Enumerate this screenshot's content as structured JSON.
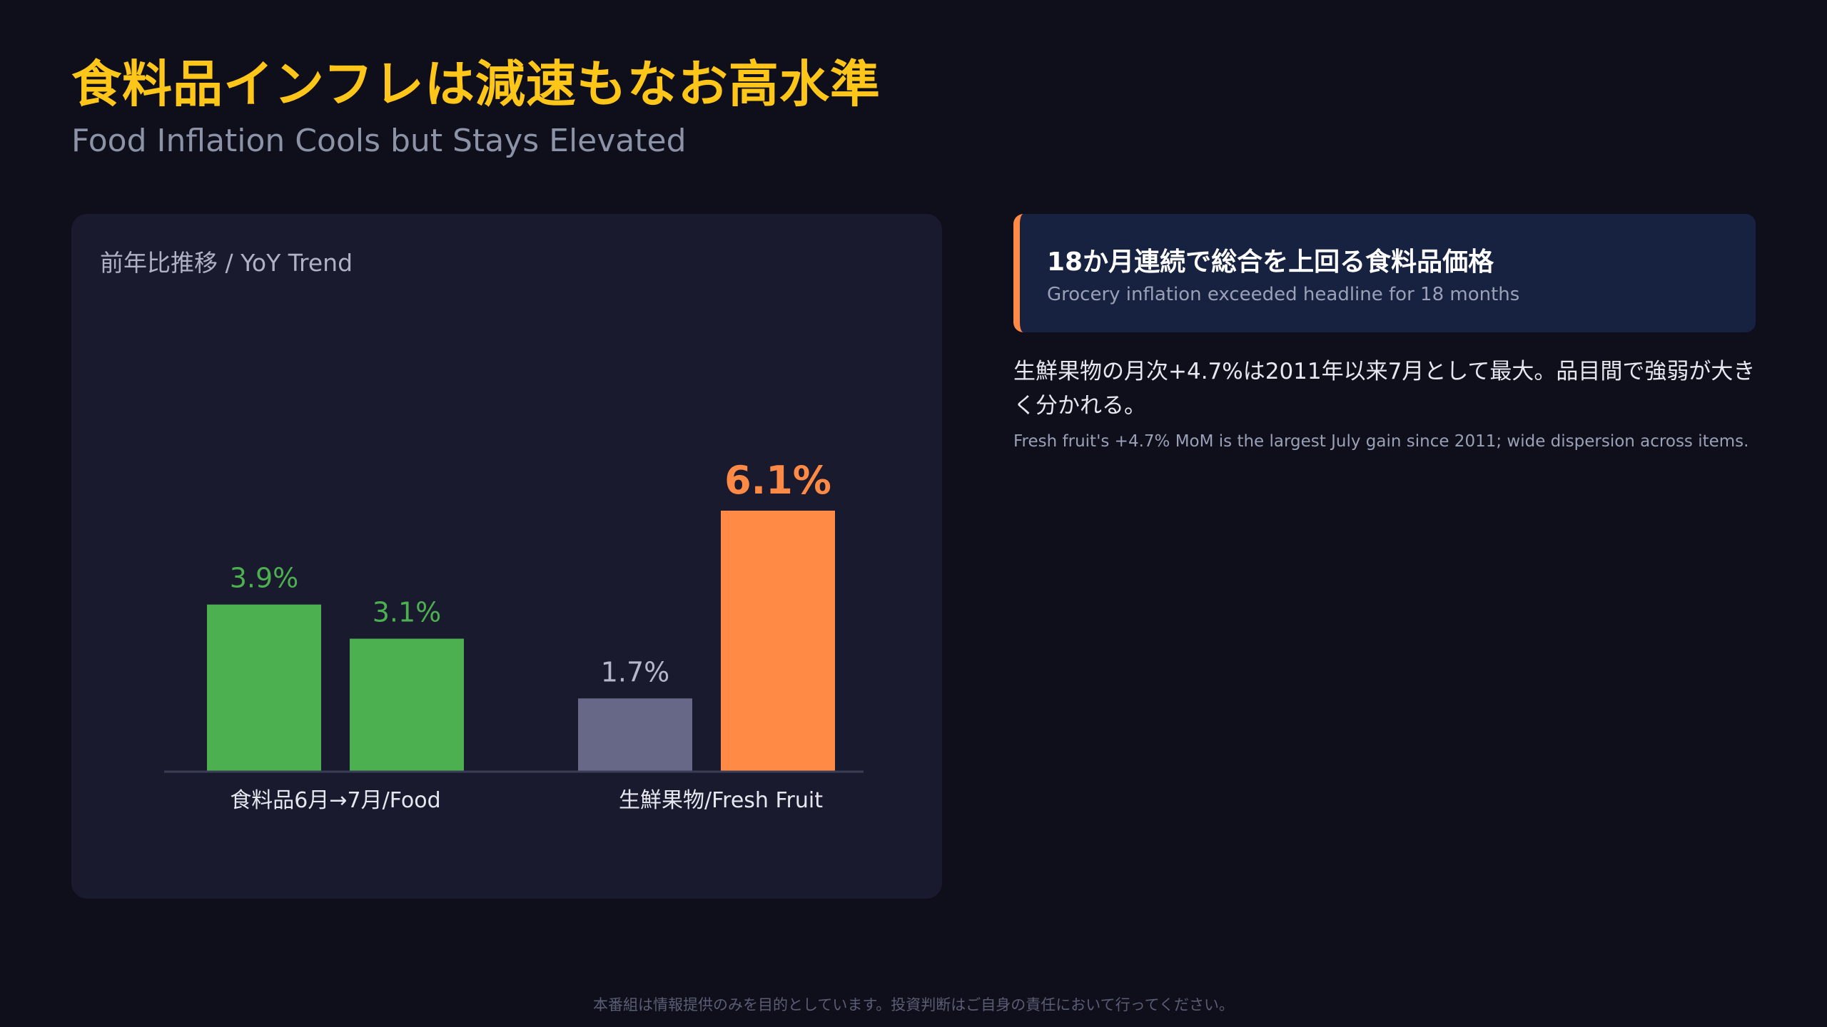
{
  "header": {
    "title": "食料品インフレは減速もなお高水準",
    "subtitle": "Food Inflation Cools but Stays Elevated"
  },
  "chart_panel": {
    "label": "前年比推移 / YoY Trend"
  },
  "chart_data": {
    "type": "bar",
    "title": "前年比推移 / YoY Trend",
    "categories": [
      "食料品6月→7月/Food",
      "生鮮果物/Fresh Fruit"
    ],
    "bars": [
      {
        "category": "食料品6月→7月/Food",
        "value": 3.9,
        "label": "3.9%",
        "color": "#4caf50",
        "label_color": "#4caf50",
        "emphasis": false
      },
      {
        "category": "食料品6月→7月/Food",
        "value": 3.1,
        "label": "3.1%",
        "color": "#4caf50",
        "label_color": "#4caf50",
        "emphasis": false
      },
      {
        "category": "生鮮果物/Fresh Fruit",
        "value": 1.7,
        "label": "1.7%",
        "color": "#676788",
        "label_color": "#b4b8c8",
        "emphasis": false
      },
      {
        "category": "生鮮果物/Fresh Fruit",
        "value": 6.1,
        "label": "6.1%",
        "color": "#ff8a45",
        "label_color": "#ff8a45",
        "emphasis": true
      }
    ],
    "ylim": [
      0,
      6.1
    ],
    "grid": false,
    "legend": "none",
    "xlabel": "",
    "ylabel": ""
  },
  "callout": {
    "title": "18か月連続で総合を上回る食料品価格",
    "subtitle": "Grocery inflation exceeded headline for 18 months",
    "accent_color": "#ff8a45"
  },
  "note": {
    "ja": "生鮮果物の月次+4.7%は2011年以来7月として最大。品目間で強弱が大きく分かれる。",
    "en": "Fresh fruit's +4.7% MoM is the largest July gain since 2011; wide dispersion across items."
  },
  "footer": {
    "disclaimer": "本番組は情報提供のみを目的としています。投資判断はご自身の責任において行ってください。"
  },
  "colors": {
    "background": "#0f0f1c",
    "panel": "#191a2e",
    "title": "#ffc61a"
  }
}
